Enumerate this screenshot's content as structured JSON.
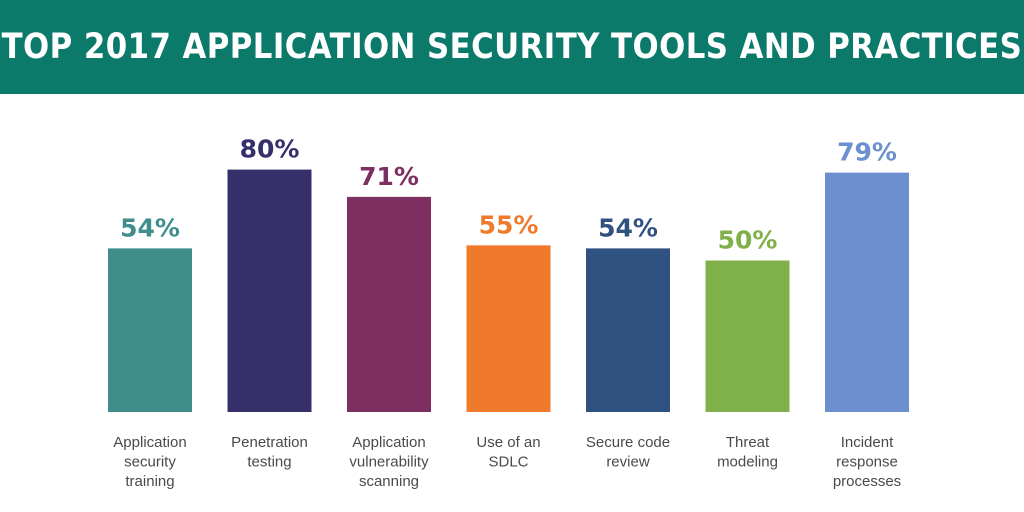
{
  "title": "TOP 2017 APPLICATION SECURITY TOOLS AND PRACTICES",
  "colors": {
    "banner": "#0b7a6a",
    "banner_text": "#ffffff"
  },
  "chart_data": {
    "type": "bar",
    "title": "TOP 2017 APPLICATION SECURITY TOOLS AND PRACTICES",
    "categories": [
      [
        "Application",
        "security",
        "training"
      ],
      [
        "Penetration",
        "testing"
      ],
      [
        "Application",
        "vulnerability",
        "scanning"
      ],
      [
        "Use of an",
        "SDLC"
      ],
      [
        "Secure code",
        "review"
      ],
      [
        "Threat",
        "modeling"
      ],
      [
        "Incident",
        "response",
        "processes"
      ]
    ],
    "values": [
      54,
      80,
      71,
      55,
      54,
      50,
      79
    ],
    "value_labels": [
      "54%",
      "80%",
      "71%",
      "55%",
      "54%",
      "50%",
      "79%"
    ],
    "bar_colors": [
      "#3f8e8c",
      "#35306a",
      "#7e2f61",
      "#f07a2b",
      "#2f5281",
      "#7fb04a",
      "#6b8fcf"
    ],
    "xlabel": "",
    "ylabel": "",
    "ylim": [
      0,
      100
    ],
    "grid": false
  }
}
